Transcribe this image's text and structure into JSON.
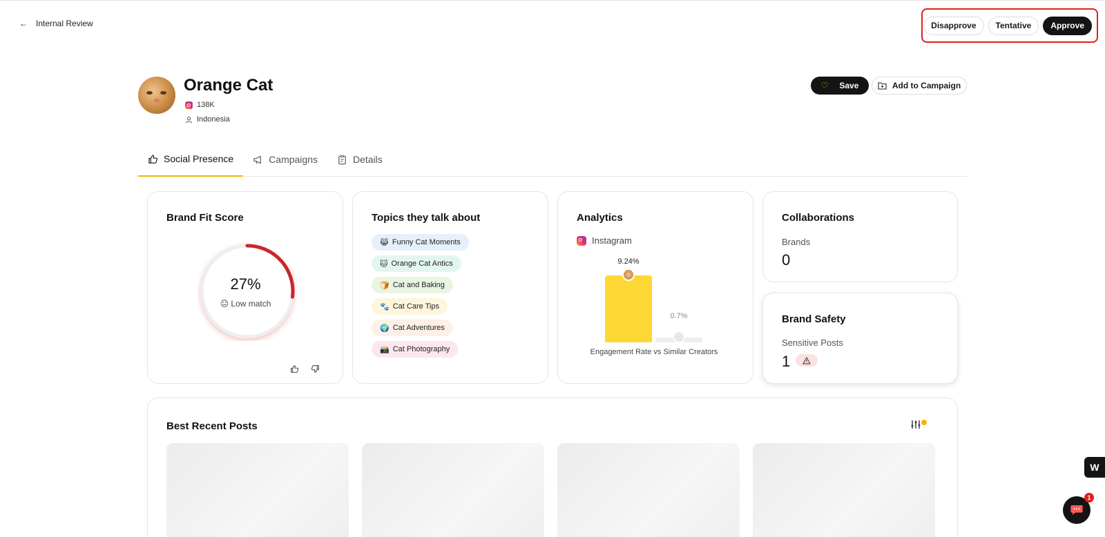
{
  "header": {
    "back_label": "Internal Review",
    "actions": {
      "disapprove": "Disapprove",
      "tentative": "Tentative",
      "approve": "Approve"
    }
  },
  "profile": {
    "name": "Orange Cat",
    "followers": "138K",
    "location": "Indonesia",
    "save_label": "Save",
    "add_campaign_label": "Add to Campaign"
  },
  "tabs": [
    {
      "label": "Social Presence",
      "icon": "thumbs-up-icon",
      "active": true
    },
    {
      "label": "Campaigns",
      "icon": "megaphone-icon",
      "active": false
    },
    {
      "label": "Details",
      "icon": "clipboard-icon",
      "active": false
    }
  ],
  "brand_fit": {
    "title": "Brand Fit Score",
    "value": "27%",
    "fraction": 0.27,
    "label": "😐 Low match",
    "accent": "#c8282b"
  },
  "topics": {
    "title": "Topics they talk about",
    "items": [
      {
        "emoji": "😹",
        "label": "Funny Cat Moments",
        "color": "#e5f0fb"
      },
      {
        "emoji": "🐱",
        "label": "Orange Cat Antics",
        "color": "#e3f6ee"
      },
      {
        "emoji": "🍞",
        "label": "Cat and Baking",
        "color": "#e9f5e3"
      },
      {
        "emoji": "🐾",
        "label": "Cat Care Tips",
        "color": "#fdf6dc"
      },
      {
        "emoji": "🌍",
        "label": "Cat Adventures",
        "color": "#fdf0e6"
      },
      {
        "emoji": "📸",
        "label": "Cat Photography",
        "color": "#fce6ef"
      }
    ]
  },
  "analytics": {
    "title": "Analytics",
    "platform": "Instagram",
    "caption": "Engagement Rate vs Similar Creators",
    "chart_data": {
      "type": "bar",
      "categories": [
        "Creator",
        "Similar Creators"
      ],
      "values": [
        9.24,
        0.7
      ],
      "labels": [
        "9.24%",
        "0.7%"
      ],
      "colors": [
        "#fdd835",
        "#eeeeee"
      ]
    }
  },
  "collaborations": {
    "title": "Collaborations",
    "label": "Brands",
    "value": "0"
  },
  "brand_safety": {
    "title": "Brand Safety",
    "label": "Sensitive Posts",
    "value": "1"
  },
  "recent_posts": {
    "title": "Best Recent Posts"
  },
  "widgets": {
    "logo_letter": "W",
    "chat_badge": "1"
  }
}
